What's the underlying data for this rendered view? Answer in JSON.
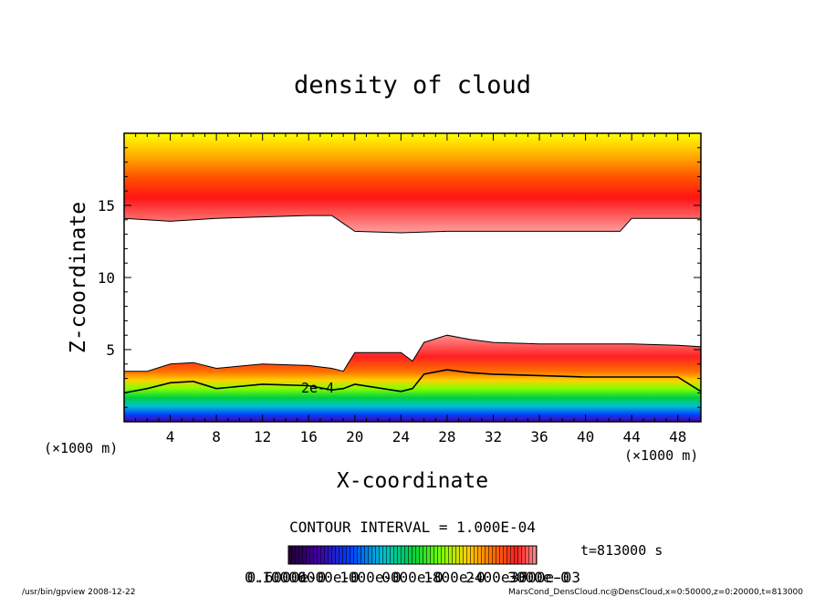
{
  "chart_data": {
    "type": "heatmap",
    "title": "density of cloud",
    "xlabel": "X-coordinate",
    "ylabel": "Z-coordinate",
    "x_unit_label": "(×1000 m)",
    "z_unit_label": "(×1000 m)",
    "xlim": [
      0,
      50
    ],
    "ylim": [
      0,
      20
    ],
    "x_ticks": [
      "4",
      "8",
      "12",
      "16",
      "20",
      "24",
      "28",
      "32",
      "36",
      "40",
      "44",
      "48"
    ],
    "y_ticks": [
      "5",
      "10",
      "15"
    ],
    "contour_label": "2e-4",
    "contour_interval_text": "CONTOUR INTERVAL = 1.000E-04",
    "time_text": "t=813000 s",
    "colorbar_labels": [
      "0.10000",
      "0.6000e-0",
      "6000e-0",
      "1000e-0",
      "0000e-0",
      "1800e-0",
      "2400e-0",
      "3000e-0",
      "3700e-03"
    ],
    "footer_left": "/usr/bin/gpview   2008-12-22",
    "footer_right": "MarsCond_DensCloud.nc@DensCloud,x=0:50000,z=0:20000,t=813000",
    "upper_layer": {
      "x": [
        0,
        4,
        8,
        12,
        16,
        18,
        20,
        24,
        28,
        32,
        36,
        40,
        43,
        44,
        46,
        50
      ],
      "bottom": [
        14.1,
        13.9,
        14.1,
        14.2,
        14.3,
        14.3,
        13.2,
        13.1,
        13.2,
        13.2,
        13.2,
        13.2,
        13.2,
        14.1,
        14.1,
        14.1
      ]
    },
    "lower_layer": {
      "x": [
        0,
        2,
        4,
        6,
        8,
        12,
        16,
        18,
        19,
        20,
        24,
        25,
        26,
        28,
        30,
        32,
        36,
        40,
        44,
        48,
        50
      ],
      "top": [
        3.5,
        3.5,
        4.0,
        4.1,
        3.7,
        4.0,
        3.9,
        3.7,
        3.5,
        4.8,
        4.8,
        4.2,
        5.5,
        6.0,
        5.7,
        5.5,
        5.4,
        5.4,
        5.4,
        5.3,
        5.2
      ],
      "contour_2e4": [
        2.0,
        2.3,
        2.7,
        2.8,
        2.3,
        2.6,
        2.5,
        2.2,
        2.3,
        2.6,
        2.1,
        2.3,
        3.3,
        3.6,
        3.4,
        3.3,
        3.2,
        3.1,
        3.1,
        3.1,
        2.1
      ]
    }
  }
}
